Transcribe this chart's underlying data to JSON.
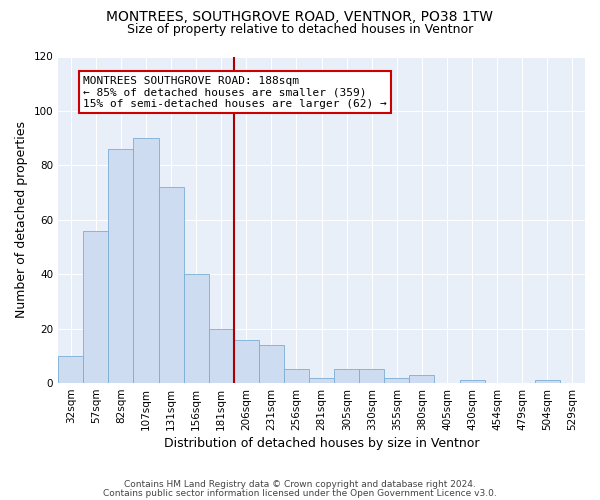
{
  "title": "MONTREES, SOUTHGROVE ROAD, VENTNOR, PO38 1TW",
  "subtitle": "Size of property relative to detached houses in Ventnor",
  "xlabel": "Distribution of detached houses by size in Ventnor",
  "ylabel": "Number of detached properties",
  "categories": [
    "32sqm",
    "57sqm",
    "82sqm",
    "107sqm",
    "131sqm",
    "156sqm",
    "181sqm",
    "206sqm",
    "231sqm",
    "256sqm",
    "281sqm",
    "305sqm",
    "330sqm",
    "355sqm",
    "380sqm",
    "405sqm",
    "430sqm",
    "454sqm",
    "479sqm",
    "504sqm",
    "529sqm"
  ],
  "values": [
    10,
    56,
    86,
    90,
    72,
    40,
    20,
    16,
    14,
    5,
    2,
    5,
    5,
    2,
    3,
    0,
    1,
    0,
    0,
    1,
    0
  ],
  "bar_color": "#cddcf0",
  "bar_edge_color": "#7aadd4",
  "vline_x": 6.5,
  "vline_color": "#aa0000",
  "annotation_text": "MONTREES SOUTHGROVE ROAD: 188sqm\n← 85% of detached houses are smaller (359)\n15% of semi-detached houses are larger (62) →",
  "annotation_box_color": "#ffffff",
  "annotation_box_edge": "#cc0000",
  "ylim": [
    0,
    120
  ],
  "yticks": [
    0,
    20,
    40,
    60,
    80,
    100,
    120
  ],
  "bg_color": "#e8eff8",
  "footer1": "Contains HM Land Registry data © Crown copyright and database right 2024.",
  "footer2": "Contains public sector information licensed under the Open Government Licence v3.0.",
  "title_fontsize": 10,
  "subtitle_fontsize": 9,
  "axis_label_fontsize": 9,
  "tick_fontsize": 7.5,
  "annotation_fontsize": 8,
  "footer_fontsize": 6.5
}
